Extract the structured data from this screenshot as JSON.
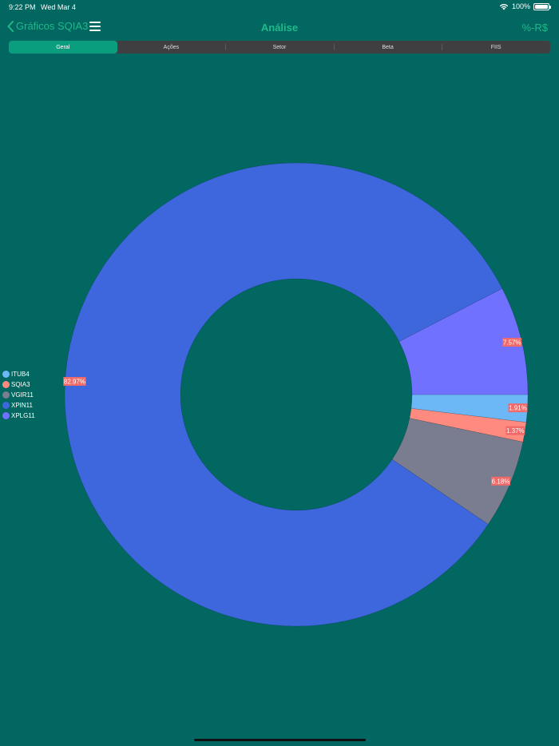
{
  "status_bar": {
    "time": "9:22 PM",
    "date": "Wed Mar 4",
    "battery": "100%"
  },
  "nav": {
    "back_label": "Gráficos SQIA3",
    "title": "Análise",
    "right_label": "%-R$"
  },
  "tabs": [
    "Geral",
    "Ações",
    "Setor",
    "Beta",
    "FIIS"
  ],
  "selected_tab": 0,
  "colors": {
    "background": "#016760",
    "accent": "#1fb98a",
    "label_bg": "#f06a6a"
  },
  "chart_data": {
    "type": "pie",
    "title": "",
    "legend_position": "left",
    "series": [
      {
        "name": "ITUB4",
        "value": 1.91,
        "label": "1.91%",
        "color": "#6cb8f7"
      },
      {
        "name": "SQIA3",
        "value": 1.37,
        "label": "1.37%",
        "color": "#ff8a80"
      },
      {
        "name": "VGIR11",
        "value": 6.18,
        "label": "6.18%",
        "color": "#7a7c90"
      },
      {
        "name": "XPIN11",
        "value": 82.97,
        "label": "82.97%",
        "color": "#3e67de"
      },
      {
        "name": "XPLG11",
        "value": 7.57,
        "label": "7.57%",
        "color": "#7171ff"
      }
    ]
  }
}
